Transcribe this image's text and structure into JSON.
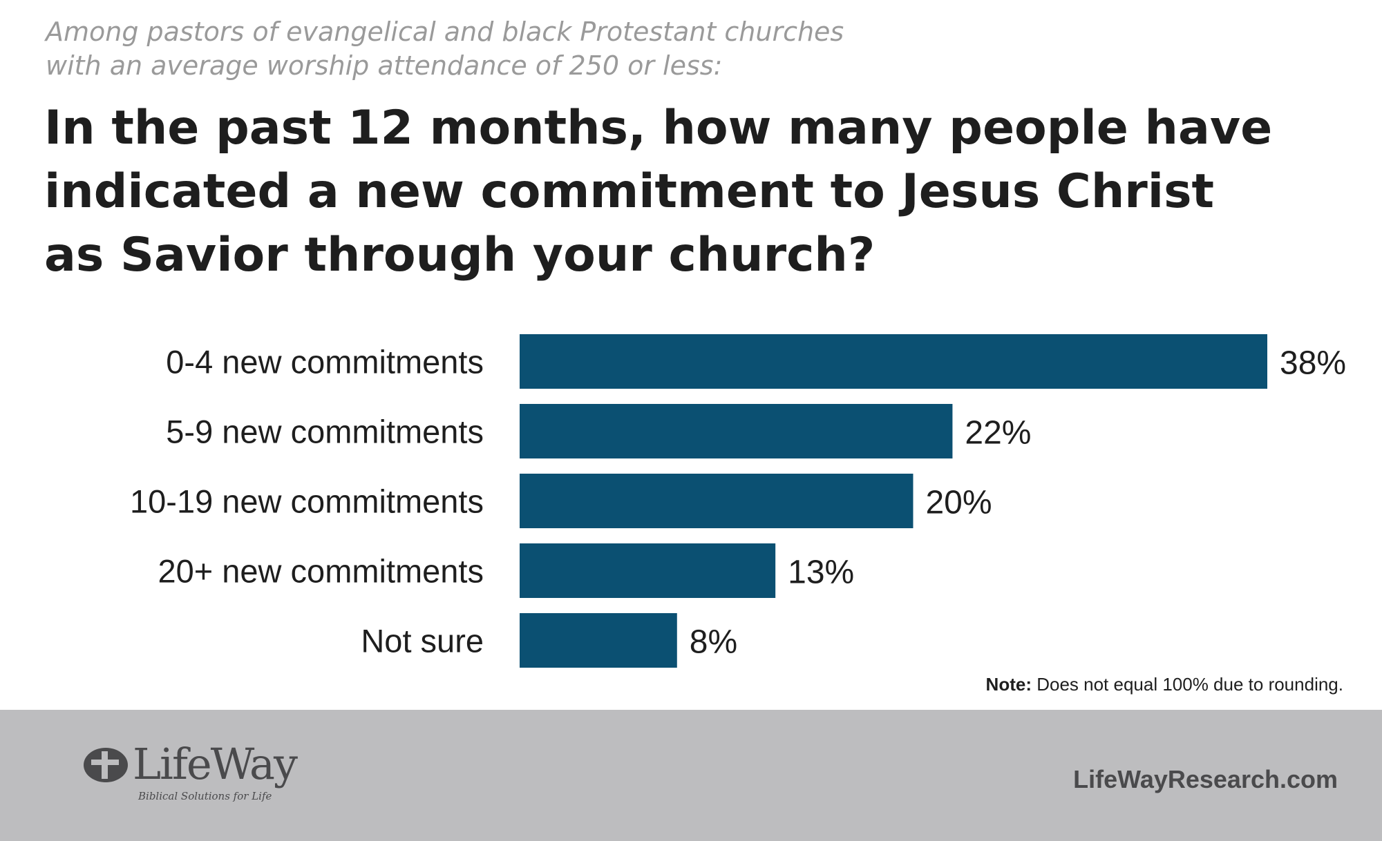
{
  "subtitle_lines": [
    "Among pastors of evangelical and black Protestant churches",
    "with an average worship attendance of 250 or less:"
  ],
  "title_lines": [
    "In the past 12 months, how many people have",
    "indicated a new commitment to Jesus Christ",
    "as Savior through your church?"
  ],
  "chart_data": {
    "type": "bar",
    "orientation": "horizontal",
    "categories": [
      "0-4 new commitments",
      "5-9 new commitments",
      "10-19 new commitments",
      "20+ new commitments",
      "Not sure"
    ],
    "values": [
      38,
      22,
      20,
      13,
      8
    ],
    "value_labels": [
      "38%",
      "22%",
      "20%",
      "13%",
      "8%"
    ],
    "unit": "%",
    "xlim": [
      0,
      38
    ],
    "grid": false,
    "bar_color": "#0b5072"
  },
  "note": {
    "label": "Note:",
    "text": " Does not equal 100% due to rounding."
  },
  "footer": {
    "logo_text": "LifeWay",
    "logo_tagline": "Biblical Solutions for Life",
    "logo_icon": "lifeway-cross-icon",
    "website": "LifeWayResearch.com"
  }
}
